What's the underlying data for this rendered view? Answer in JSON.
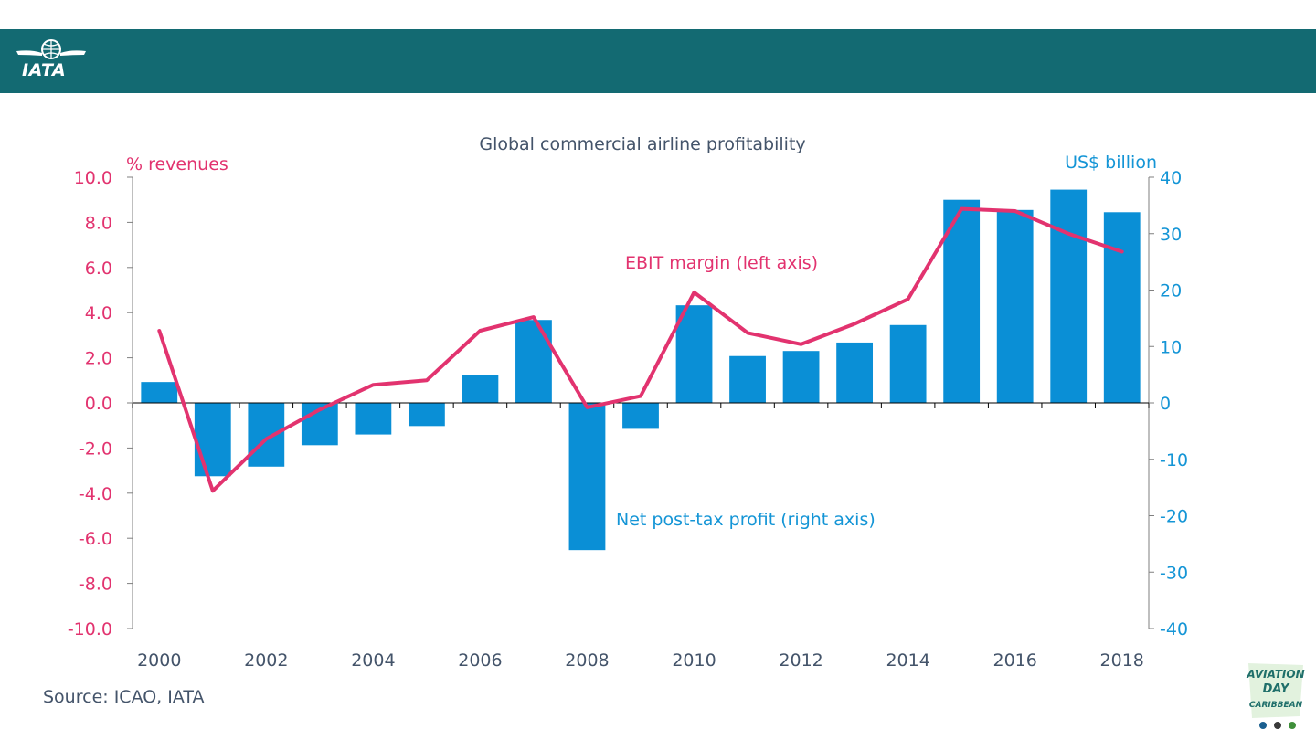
{
  "header": {
    "logo_text": "IATA",
    "logo_icon": "globe-wings-icon"
  },
  "source": "Source: ICAO, IATA",
  "badge": {
    "line1": "AVIATION",
    "line2": "DAY",
    "line3": "CARIBBEAN"
  },
  "chart_data": {
    "type": "bar",
    "title": "Global commercial airline profitability",
    "x": [
      2000,
      2001,
      2002,
      2003,
      2004,
      2005,
      2006,
      2007,
      2008,
      2009,
      2010,
      2011,
      2012,
      2013,
      2014,
      2015,
      2016,
      2017,
      2018
    ],
    "x_tick_labels": [
      "2000",
      "2002",
      "2004",
      "2006",
      "2008",
      "2010",
      "2012",
      "2014",
      "2016",
      "2018"
    ],
    "left_axis": {
      "label": "% revenues",
      "ylim": [
        -10,
        10
      ],
      "ticks": [
        "-10.0",
        "-8.0",
        "-6.0",
        "-4.0",
        "-2.0",
        "0.0",
        "2.0",
        "4.0",
        "6.0",
        "8.0",
        "10.0"
      ],
      "color": "#e2336f"
    },
    "right_axis": {
      "label": "US$ billion",
      "ylim": [
        -40,
        40
      ],
      "ticks": [
        "-40",
        "-30",
        "-20",
        "-10",
        "0",
        "10",
        "20",
        "30",
        "40"
      ],
      "color": "#1495d6"
    },
    "series": [
      {
        "name": "Net post-tax profit (right axis)",
        "type": "bar",
        "axis": "right",
        "color": "#0a8fd6",
        "values": [
          3.7,
          -13.0,
          -11.3,
          -7.5,
          -5.6,
          -4.1,
          5.0,
          14.7,
          -26.1,
          -4.6,
          17.3,
          8.3,
          9.2,
          10.7,
          13.8,
          36.0,
          34.2,
          37.8,
          33.8
        ]
      },
      {
        "name": "EBIT margin (left axis)",
        "type": "line",
        "axis": "left",
        "color": "#e2336f",
        "values": [
          3.2,
          -3.9,
          -1.6,
          -0.3,
          0.8,
          1.0,
          3.2,
          3.8,
          -0.2,
          0.3,
          4.9,
          3.1,
          2.6,
          3.5,
          4.6,
          8.6,
          8.5,
          7.5,
          6.7
        ]
      }
    ],
    "grid": false
  }
}
